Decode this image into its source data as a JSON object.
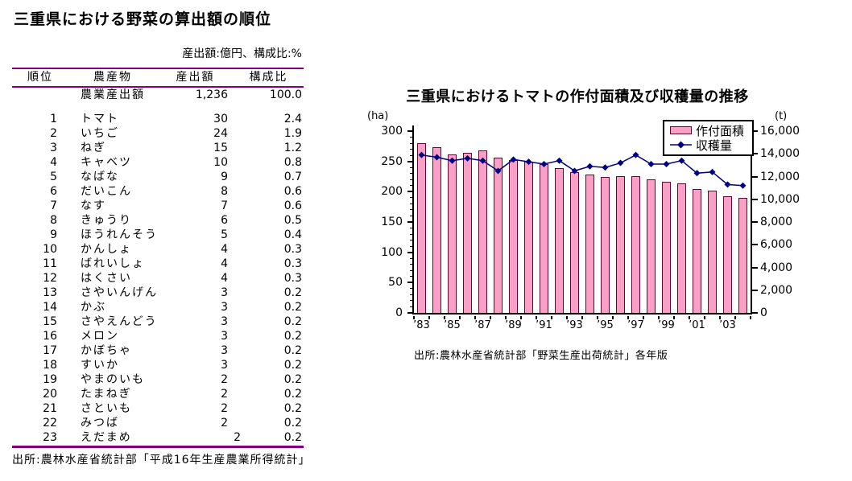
{
  "page": {
    "background": "#FFFFFF"
  },
  "table_section": {
    "title": "三重県における野菜の算出額の順位",
    "unit_note": "産出額:億円、構成比:%",
    "rule_color": "#800080",
    "columns": [
      "順位",
      "農産物",
      "産出額",
      "構成比"
    ],
    "total_row": {
      "rank": "",
      "name": "農業産出額",
      "value": "1,236",
      "ratio": "100.0"
    },
    "rows": [
      {
        "rank": "1",
        "name": "トマト",
        "value": "30",
        "ratio": "2.4"
      },
      {
        "rank": "2",
        "name": "いちご",
        "value": "24",
        "ratio": "1.9"
      },
      {
        "rank": "3",
        "name": "ねぎ",
        "value": "15",
        "ratio": "1.2"
      },
      {
        "rank": "4",
        "name": "キャベツ",
        "value": "10",
        "ratio": "0.8"
      },
      {
        "rank": "5",
        "name": "なばな",
        "value": "9",
        "ratio": "0.7"
      },
      {
        "rank": "6",
        "name": "だいこん",
        "value": "8",
        "ratio": "0.6"
      },
      {
        "rank": "7",
        "name": "なす",
        "value": "7",
        "ratio": "0.6"
      },
      {
        "rank": "8",
        "name": "きゅうり",
        "value": "6",
        "ratio": "0.5"
      },
      {
        "rank": "9",
        "name": "ほうれんそう",
        "value": "5",
        "ratio": "0.4"
      },
      {
        "rank": "10",
        "name": "かんしょ",
        "value": "4",
        "ratio": "0.3"
      },
      {
        "rank": "11",
        "name": "ばれいしょ",
        "value": "4",
        "ratio": "0.3"
      },
      {
        "rank": "12",
        "name": "はくさい",
        "value": "4",
        "ratio": "0.3"
      },
      {
        "rank": "13",
        "name": "さやいんげん",
        "value": "3",
        "ratio": "0.2"
      },
      {
        "rank": "14",
        "name": "かぶ",
        "value": "3",
        "ratio": "0.2"
      },
      {
        "rank": "15",
        "name": "さやえんどう",
        "value": "3",
        "ratio": "0.2"
      },
      {
        "rank": "16",
        "name": "メロン",
        "value": "3",
        "ratio": "0.2"
      },
      {
        "rank": "17",
        "name": "かぼちゃ",
        "value": "3",
        "ratio": "0.2"
      },
      {
        "rank": "18",
        "name": "すいか",
        "value": "3",
        "ratio": "0.2"
      },
      {
        "rank": "19",
        "name": "やまのいも",
        "value": "2",
        "ratio": "0.2"
      },
      {
        "rank": "20",
        "name": "たまねぎ",
        "value": "2",
        "ratio": "0.2"
      },
      {
        "rank": "21",
        "name": "さといも",
        "value": "2",
        "ratio": "0.2"
      },
      {
        "rank": "22",
        "name": "みつば",
        "value": "2",
        "ratio": "0.2"
      },
      {
        "rank": "23",
        "name": "えだまめ",
        "value": "2",
        "ratio": "0.2",
        "shift": true
      }
    ],
    "source": "出所:農林水産省統計部「平成16年生産農業所得統計」"
  },
  "chart_section": {
    "source": "出所:農林水産省統計部「野菜生産出荷統計」各年版"
  },
  "chart_data": {
    "type": "bar+line combo",
    "title": "三重県におけるトマトの作付面積及び収穫量の推移",
    "x_years": [
      1983,
      1984,
      1985,
      1986,
      1987,
      1988,
      1989,
      1990,
      1991,
      1992,
      1993,
      1994,
      1995,
      1996,
      1997,
      1998,
      1999,
      2000,
      2001,
      2002,
      2003,
      2004
    ],
    "x_tick_labels": [
      "’83",
      "’85",
      "’87",
      "’89",
      "’91",
      "’93",
      "’95",
      "’97",
      "’99",
      "’01",
      "’03"
    ],
    "series": [
      {
        "name": "作付面積",
        "type": "bar",
        "axis": "left",
        "unit": "ha",
        "color": "#FA9FC6",
        "border_color": "#5C0A33",
        "values": [
          280,
          274,
          262,
          264,
          268,
          256,
          252,
          250,
          245,
          239,
          233,
          228,
          225,
          226,
          226,
          220,
          217,
          214,
          205,
          202,
          193,
          190
        ]
      },
      {
        "name": "収穫量",
        "type": "line",
        "axis": "right",
        "unit": "t",
        "color": "#000080",
        "marker": "diamond",
        "values": [
          13900,
          13700,
          13400,
          13600,
          13400,
          12500,
          13500,
          13300,
          13100,
          13400,
          12500,
          12900,
          12800,
          13200,
          13900,
          13100,
          13100,
          13400,
          12300,
          12400,
          11300,
          11200
        ]
      }
    ],
    "left_axis": {
      "label": "(ha)",
      "min": 0,
      "max": 300,
      "major": 50,
      "minor": 10,
      "ticks": [
        "300",
        "250",
        "200",
        "150",
        "100",
        "50",
        "0"
      ]
    },
    "right_axis": {
      "label": "(t)",
      "min": 0,
      "max": 16000,
      "major": 2000,
      "ticks": [
        "16,000",
        "14,000",
        "12,000",
        "10,000",
        "8,000",
        "6,000",
        "4,000",
        "2,000",
        "0"
      ]
    },
    "legend": [
      "作付面積",
      "収穫量"
    ],
    "legend_position": "top-right",
    "grid": false
  }
}
